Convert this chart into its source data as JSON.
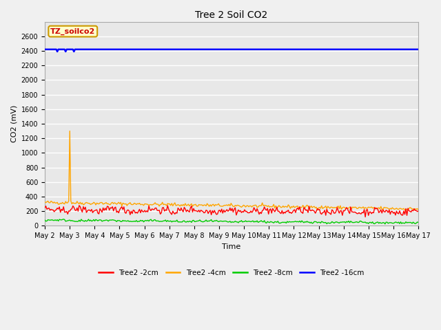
{
  "title": "Tree 2 Soil CO2",
  "ylabel": "CO2 (mV)",
  "xlabel": "Time",
  "xlim_days": [
    2,
    17
  ],
  "ylim": [
    0,
    2800
  ],
  "yticks": [
    0,
    200,
    400,
    600,
    800,
    1000,
    1200,
    1400,
    1600,
    1800,
    2000,
    2200,
    2400,
    2600
  ],
  "xtick_labels": [
    "May 2",
    "May 3",
    "May 4",
    "May 5",
    "May 6",
    "May 7",
    "May 8",
    "May 9",
    "May 10",
    "May 11",
    "May 12",
    "May 13",
    "May 14",
    "May 15",
    "May 16",
    "May 17"
  ],
  "bg_color": "#e8e8e8",
  "fig_bg_color": "#f0f0f0",
  "grid_color": "#ffffff",
  "series_colors": {
    "2cm": "#ff0000",
    "4cm": "#ffa500",
    "8cm": "#00cc00",
    "16cm": "#0000ff"
  },
  "legend_label": "TZ_soilco2",
  "legend_bg": "#ffffcc",
  "legend_border": "#cc9900",
  "legend_text_color": "#cc0000",
  "title_fontsize": 10,
  "tick_fontsize": 7,
  "axis_label_fontsize": 8
}
